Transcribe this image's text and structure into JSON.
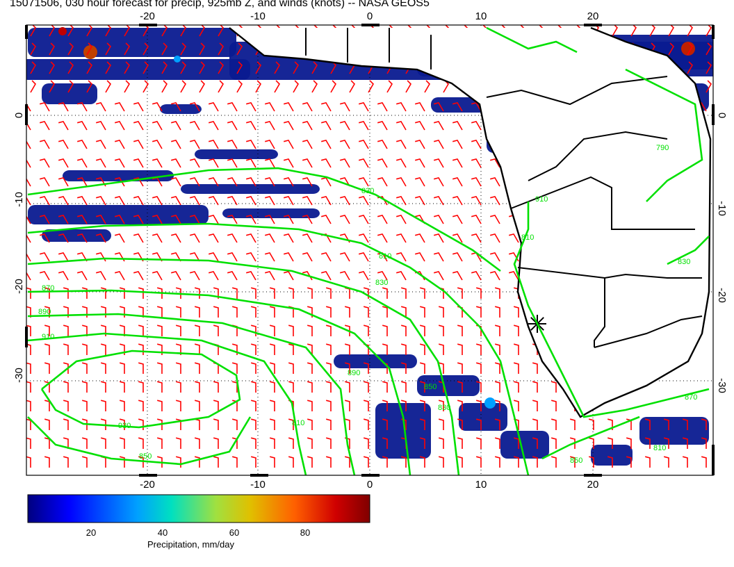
{
  "title": "15071506, 030 hour forecast for precip, 925mb Z, and winds (knots) -- NASA GEOS5",
  "map": {
    "lon_ticks": [
      "-20",
      "-10",
      "0",
      "10",
      "20"
    ],
    "lat_ticks": [
      "0",
      "-10",
      "-20",
      "-30"
    ],
    "contour_labels": [
      "830",
      "810",
      "830",
      "870",
      "890",
      "910",
      "930",
      "850",
      "810",
      "830",
      "850",
      "790",
      "810",
      "830",
      "850",
      "810",
      "870",
      "890",
      "910"
    ],
    "station_marker": "star",
    "colors": {
      "contour": "#00e000",
      "wind_barb": "#ff0000",
      "coastline": "#000000",
      "grid": "#000000"
    }
  },
  "colorbar": {
    "tick_labels": [
      "20",
      "40",
      "60",
      "80"
    ],
    "label": "Precipitation, mm/day",
    "stops": [
      "#00007f",
      "#0000ff",
      "#00a0ff",
      "#00e0c0",
      "#a0e040",
      "#e0c000",
      "#ff6000",
      "#d00000",
      "#800000"
    ]
  }
}
